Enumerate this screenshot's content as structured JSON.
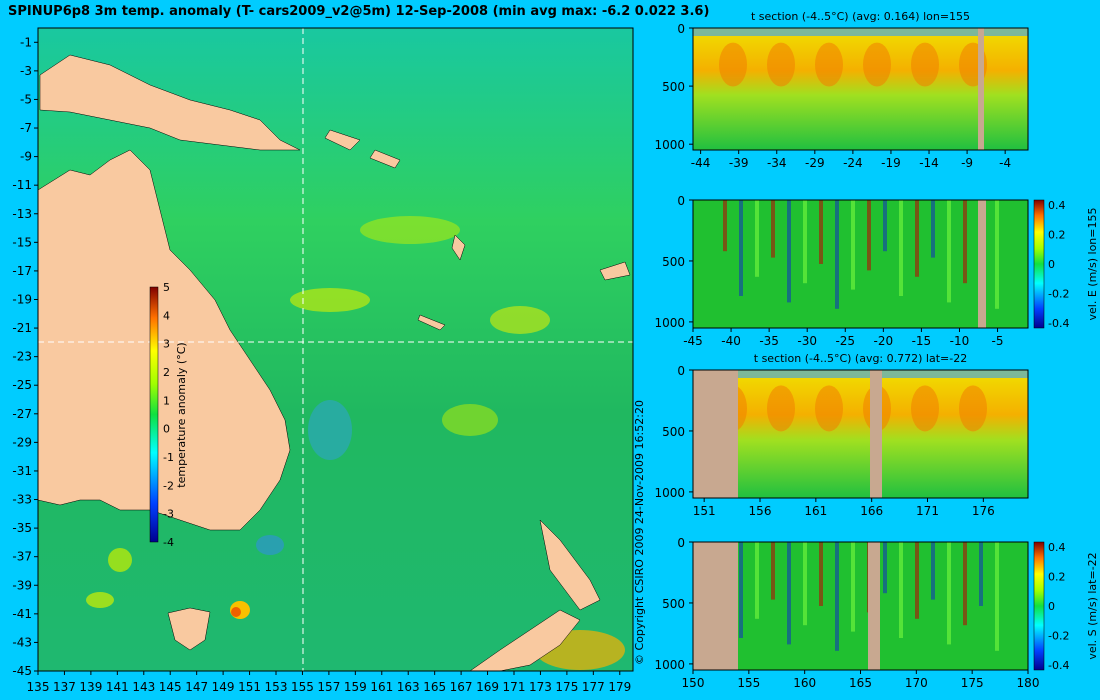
{
  "title": "SPINUP6p8 3m temp. anomaly (T- cars2009_v2@5m) 12-Sep-2008 (min avg max: -6.2 0.022 3.6)",
  "credit": "© Copyright CSIRO 2009   24-Nov-2009 16:52:20",
  "colors": {
    "background": "#00ccff",
    "land": "#f9c9a0",
    "section_land": "#c8a890"
  },
  "chart_data": [
    {
      "type": "heatmap",
      "id": "map",
      "title": "",
      "x_ticks": [
        135,
        137,
        139,
        141,
        143,
        145,
        147,
        149,
        151,
        153,
        155,
        157,
        159,
        161,
        163,
        165,
        167,
        169,
        171,
        173,
        175,
        177,
        179
      ],
      "y_ticks": [
        -1,
        -3,
        -5,
        -7,
        -9,
        -11,
        -13,
        -15,
        -17,
        -19,
        -21,
        -23,
        -25,
        -27,
        -29,
        -31,
        -33,
        -35,
        -37,
        -39,
        -41,
        -43,
        -45
      ],
      "xlim": [
        135,
        180
      ],
      "ylim": [
        -45,
        0
      ],
      "crosshair": {
        "lon": 155,
        "lat": -22
      },
      "colorbar": {
        "label": "temperature anomaly (°C)",
        "ticks": [
          5,
          4,
          3,
          2,
          1,
          0,
          -1,
          -2,
          -3,
          -4
        ],
        "range": [
          -4,
          5
        ]
      }
    },
    {
      "type": "heatmap",
      "id": "t-section-lon",
      "title": "t section (-4..5°C) (avg: 0.164) lon=155",
      "x_ticks": [
        -44,
        -39,
        -34,
        -29,
        -24,
        -19,
        -14,
        -9,
        -4
      ],
      "xlim": [
        -45,
        -1
      ],
      "y_ticks": [
        0,
        500,
        1000
      ],
      "ylim": [
        0,
        1050
      ]
    },
    {
      "type": "heatmap",
      "id": "vel-e-section",
      "title": "",
      "x_ticks": [
        -45,
        -40,
        -35,
        -30,
        -25,
        -20,
        -15,
        -10,
        -5
      ],
      "xlim": [
        -45,
        -1
      ],
      "y_ticks": [
        0,
        500,
        1000
      ],
      "ylim": [
        0,
        1050
      ],
      "colorbar": {
        "label": "vel. E (m/s) lon=155",
        "ticks": [
          "0.4",
          "0.2",
          "0",
          "-0.2",
          "-0.4"
        ],
        "range": [
          -0.4,
          0.4
        ]
      }
    },
    {
      "type": "heatmap",
      "id": "t-section-lat",
      "title": "t section (-4..5°C) (avg: 0.772) lat=-22",
      "x_ticks": [
        151,
        156,
        161,
        166,
        171,
        176
      ],
      "xlim": [
        150,
        180
      ],
      "y_ticks": [
        0,
        500,
        1000
      ],
      "ylim": [
        0,
        1050
      ]
    },
    {
      "type": "heatmap",
      "id": "vel-s-section",
      "title": "",
      "x_ticks": [
        150,
        155,
        160,
        165,
        170,
        175,
        180
      ],
      "xlim": [
        150,
        180
      ],
      "y_ticks": [
        0,
        500,
        1000
      ],
      "ylim": [
        0,
        1050
      ],
      "colorbar": {
        "label": "vel. S (m/s) lat=-22",
        "ticks": [
          "0.4",
          "0.2",
          "0",
          "-0.2",
          "-0.4"
        ],
        "range": [
          -0.4,
          0.4
        ]
      }
    }
  ]
}
